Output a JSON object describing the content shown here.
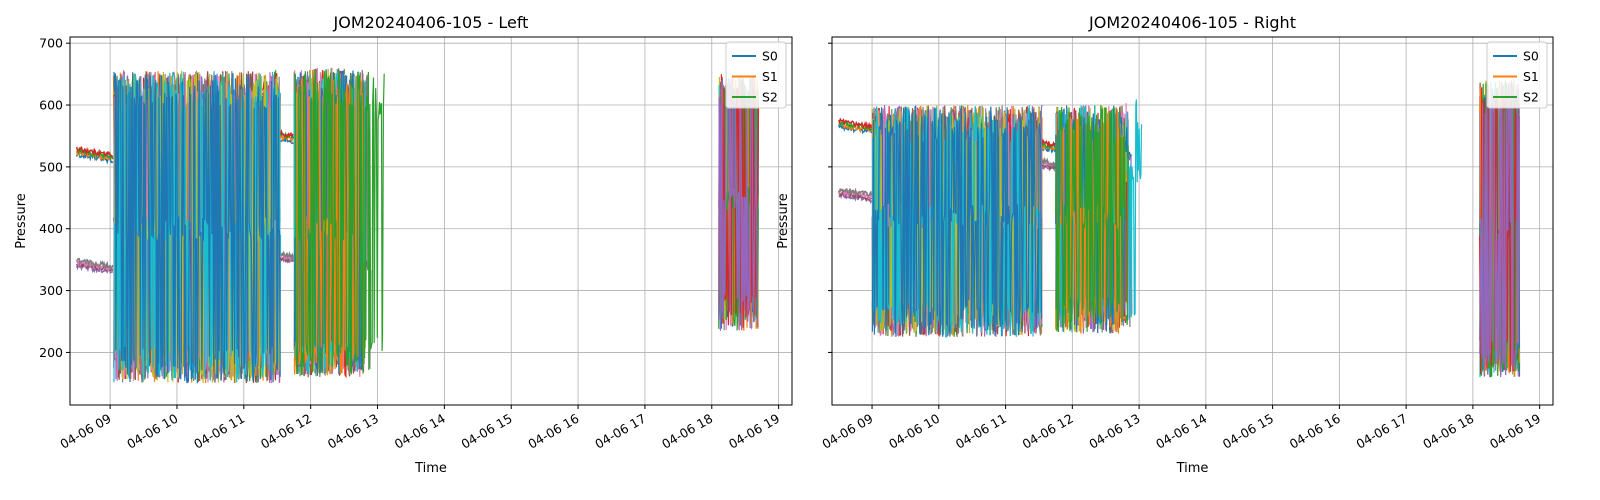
{
  "chart_data": [
    {
      "type": "line",
      "title": "JOM20240406-105 - Left",
      "xlabel": "Time",
      "ylabel": "Pressure",
      "x_range_hours": [
        8.4,
        19.2
      ],
      "ylim": [
        115,
        710
      ],
      "x_ticks": [
        {
          "hour": 9,
          "label": "04-06 09"
        },
        {
          "hour": 10,
          "label": "04-06 10"
        },
        {
          "hour": 11,
          "label": "04-06 11"
        },
        {
          "hour": 12,
          "label": "04-06 12"
        },
        {
          "hour": 13,
          "label": "04-06 13"
        },
        {
          "hour": 14,
          "label": "04-06 14"
        },
        {
          "hour": 15,
          "label": "04-06 15"
        },
        {
          "hour": 16,
          "label": "04-06 16"
        },
        {
          "hour": 17,
          "label": "04-06 17"
        },
        {
          "hour": 18,
          "label": "04-06 18"
        },
        {
          "hour": 19,
          "label": "04-06 19"
        }
      ],
      "y_ticks": [
        200,
        300,
        400,
        500,
        600,
        700
      ],
      "legend": [
        {
          "name": "S0",
          "color": "#1f77b4"
        },
        {
          "name": "S1",
          "color": "#ff7f0e"
        },
        {
          "name": "S2",
          "color": "#2ca02c"
        }
      ],
      "legend_position": "top-right",
      "grid": true,
      "segments": [
        {
          "start": 8.5,
          "end": 9.05,
          "kind": "idle",
          "levels": [
            520,
            340
          ]
        },
        {
          "start": 9.05,
          "end": 11.55,
          "kind": "oscillating",
          "low": 150,
          "high": 655,
          "mid": 400
        },
        {
          "start": 11.55,
          "end": 11.75,
          "kind": "idle",
          "levels": [
            545,
            350
          ]
        },
        {
          "start": 11.75,
          "end": 12.8,
          "kind": "oscillating",
          "low": 160,
          "high": 660,
          "mid": 400
        },
        {
          "start": 12.8,
          "end": 14.2,
          "kind": "bursty",
          "low": 170,
          "high": 655,
          "idle_levels": [
            590,
            345
          ]
        },
        {
          "start": 18.1,
          "end": 18.7,
          "kind": "oscillating",
          "low": 235,
          "high": 650,
          "mid": 450
        }
      ]
    },
    {
      "type": "line",
      "title": "JOM20240406-105 - Right",
      "xlabel": "Time",
      "ylabel": "Pressure",
      "x_range_hours": [
        8.4,
        19.2
      ],
      "ylim": [
        115,
        710
      ],
      "x_ticks": [
        {
          "hour": 9,
          "label": "04-06 09"
        },
        {
          "hour": 10,
          "label": "04-06 10"
        },
        {
          "hour": 11,
          "label": "04-06 11"
        },
        {
          "hour": 12,
          "label": "04-06 12"
        },
        {
          "hour": 13,
          "label": "04-06 13"
        },
        {
          "hour": 14,
          "label": "04-06 14"
        },
        {
          "hour": 15,
          "label": "04-06 15"
        },
        {
          "hour": 16,
          "label": "04-06 16"
        },
        {
          "hour": 17,
          "label": "04-06 17"
        },
        {
          "hour": 18,
          "label": "04-06 18"
        },
        {
          "hour": 19,
          "label": "04-06 19"
        }
      ],
      "y_ticks": [],
      "legend": [
        {
          "name": "S0",
          "color": "#1f77b4"
        },
        {
          "name": "S1",
          "color": "#ff7f0e"
        },
        {
          "name": "S2",
          "color": "#2ca02c"
        }
      ],
      "legend_position": "top-right",
      "grid": true,
      "segments": [
        {
          "start": 8.5,
          "end": 9.0,
          "kind": "idle",
          "levels": [
            565,
            455
          ]
        },
        {
          "start": 9.0,
          "end": 11.55,
          "kind": "oscillating",
          "low": 225,
          "high": 600,
          "mid": 420
        },
        {
          "start": 11.55,
          "end": 11.75,
          "kind": "idle",
          "levels": [
            530,
            500
          ]
        },
        {
          "start": 11.75,
          "end": 12.8,
          "kind": "oscillating",
          "low": 230,
          "high": 600,
          "mid": 420
        },
        {
          "start": 12.8,
          "end": 14.2,
          "kind": "bursty",
          "low": 240,
          "high": 620,
          "idle_levels": [
            520,
            490
          ]
        },
        {
          "start": 18.1,
          "end": 18.7,
          "kind": "oscillating",
          "low": 160,
          "high": 640,
          "mid": 400
        }
      ]
    }
  ]
}
